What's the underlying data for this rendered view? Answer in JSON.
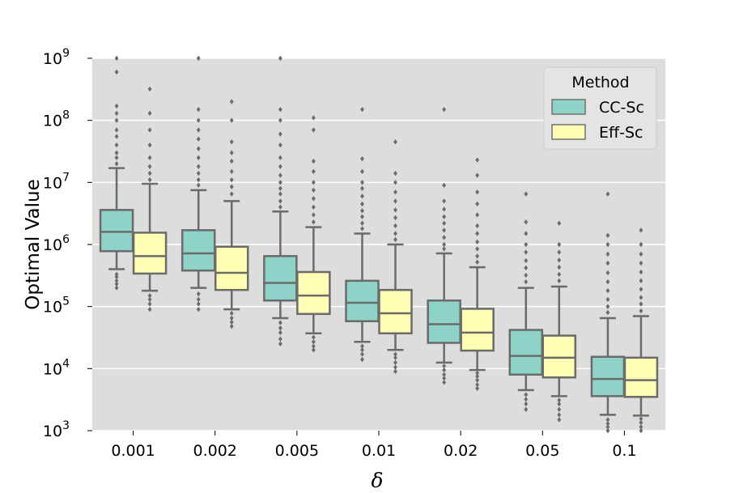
{
  "chart_data": {
    "type": "boxplot",
    "title": "",
    "xlabel": "δ",
    "ylabel": "Optimal Value",
    "yscale": "log",
    "ylim": [
      1000,
      1000000000
    ],
    "grid": true,
    "categories": [
      "0.001",
      "0.002",
      "0.005",
      "0.01",
      "0.02",
      "0.05",
      "0.1"
    ],
    "y_ticks": [
      {
        "base": "10",
        "exp": "3"
      },
      {
        "base": "10",
        "exp": "4"
      },
      {
        "base": "10",
        "exp": "5"
      },
      {
        "base": "10",
        "exp": "6"
      },
      {
        "base": "10",
        "exp": "7"
      },
      {
        "base": "10",
        "exp": "8"
      },
      {
        "base": "10",
        "exp": "9"
      }
    ],
    "legend": {
      "title": "Method",
      "position": "top-right"
    },
    "series": [
      {
        "name": "CC-Sc",
        "color": "#8dd3c7",
        "boxes": [
          {
            "whisker_low": 400000,
            "q1": 780000,
            "median": 1600000,
            "q3": 3600000,
            "whisker_high": 17000000,
            "fliers": [
              200000,
              230000,
              260000,
              300000,
              330000,
              20000000,
              25000000,
              30000000,
              40000000,
              55000000,
              70000000,
              100000000,
              130000000,
              170000000,
              600000000,
              1000000000
            ]
          },
          {
            "whisker_low": 200000,
            "q1": 380000,
            "median": 720000,
            "q3": 1700000,
            "whisker_high": 7500000,
            "fliers": [
              90000,
              110000,
              130000,
              160000,
              9000000,
              11000000,
              14000000,
              18000000,
              25000000,
              35000000,
              50000000,
              70000000,
              100000000,
              150000000,
              1000000000
            ]
          },
          {
            "whisker_low": 65000,
            "q1": 125000,
            "median": 240000,
            "q3": 650000,
            "whisker_high": 3400000,
            "fliers": [
              25000,
              30000,
              38000,
              45000,
              55000,
              4000000,
              5000000,
              6500000,
              8000000,
              10000000,
              13000000,
              18000000,
              25000000,
              40000000,
              60000000,
              100000000,
              150000000,
              1000000000
            ]
          },
          {
            "whisker_low": 27000,
            "q1": 58000,
            "median": 115000,
            "q3": 260000,
            "whisker_high": 1500000,
            "fliers": [
              14000,
              17000,
              20000,
              23000,
              1800000,
              2200000,
              2800000,
              3500000,
              4500000,
              6000000,
              8000000,
              10000000,
              15000000,
              24000000,
              150000000
            ]
          },
          {
            "whisker_low": 12500,
            "q1": 26000,
            "median": 52000,
            "q3": 125000,
            "whisker_high": 720000,
            "fliers": [
              6000,
              7000,
              8000,
              9500,
              11000,
              850000,
              1000000,
              1300000,
              1700000,
              2200000,
              2800000,
              3700000,
              5000000,
              9000000,
              150000000
            ]
          },
          {
            "whisker_low": 4500,
            "q1": 8000,
            "median": 16000,
            "q3": 42000,
            "whisker_high": 200000,
            "fliers": [
              2200,
              2700,
              3200,
              3800,
              250000,
              320000,
              420000,
              550000,
              750000,
              1000000,
              1500000,
              2300000,
              6500000
            ]
          },
          {
            "whisker_low": 1800,
            "q1": 3600,
            "median": 6800,
            "q3": 15500,
            "whisker_high": 65000,
            "fliers": [
              1000,
              1150,
              1300,
              1500,
              80000,
              100000,
              130000,
              180000,
              250000,
              350000,
              500000,
              700000,
              1000000,
              1400000,
              6500000
            ]
          }
        ]
      },
      {
        "name": "Eff-Sc",
        "color": "#ffffb3",
        "boxes": [
          {
            "whisker_low": 180000,
            "q1": 340000,
            "median": 650000,
            "q3": 1550000,
            "whisker_high": 9500000,
            "fliers": [
              90000,
              110000,
              130000,
              150000,
              11000000,
              14000000,
              18000000,
              25000000,
              40000000,
              70000000,
              130000000,
              320000000
            ]
          },
          {
            "whisker_low": 90000,
            "q1": 185000,
            "median": 350000,
            "q3": 920000,
            "whisker_high": 5000000,
            "fliers": [
              48000,
              56000,
              65000,
              78000,
              6500000,
              8500000,
              11000000,
              15000000,
              22000000,
              30000000,
              45000000,
              100000000,
              200000000
            ]
          },
          {
            "whisker_low": 37000,
            "q1": 76000,
            "median": 150000,
            "q3": 360000,
            "whisker_high": 1900000,
            "fliers": [
              20000,
              23000,
              27000,
              32000,
              2300000,
              3000000,
              4000000,
              5500000,
              7500000,
              10000000,
              15000000,
              22000000,
              70000000,
              110000000
            ]
          },
          {
            "whisker_low": 20000,
            "q1": 37000,
            "median": 78000,
            "q3": 185000,
            "whisker_high": 1000000,
            "fliers": [
              9000,
              10500,
              12500,
              15000,
              17000,
              1200000,
              1500000,
              2000000,
              2700000,
              3600000,
              5000000,
              7000000,
              10000000,
              14000000,
              45000000
            ]
          },
          {
            "whisker_low": 9500,
            "q1": 19500,
            "median": 38000,
            "q3": 92000,
            "whisker_high": 430000,
            "fliers": [
              4800,
              5500,
              6500,
              7500,
              8500,
              520000,
              650000,
              850000,
              1100000,
              1500000,
              2000000,
              3000000,
              4500000,
              7000000,
              13000000,
              23000000
            ]
          },
          {
            "whisker_low": 3600,
            "q1": 7200,
            "median": 15000,
            "q3": 34000,
            "whisker_high": 210000,
            "fliers": [
              1500,
              1800,
              2200,
              2700,
              3100,
              260000,
              330000,
              430000,
              560000,
              750000,
              1000000,
              2200000
            ]
          },
          {
            "whisker_low": 1750,
            "q1": 3500,
            "median": 6500,
            "q3": 15000,
            "whisker_high": 70000,
            "fliers": [
              1000,
              1150,
              1350,
              1550,
              85000,
              110000,
              140000,
              190000,
              260000,
              360000,
              500000,
              700000,
              1000000,
              1700000
            ]
          }
        ]
      }
    ]
  }
}
